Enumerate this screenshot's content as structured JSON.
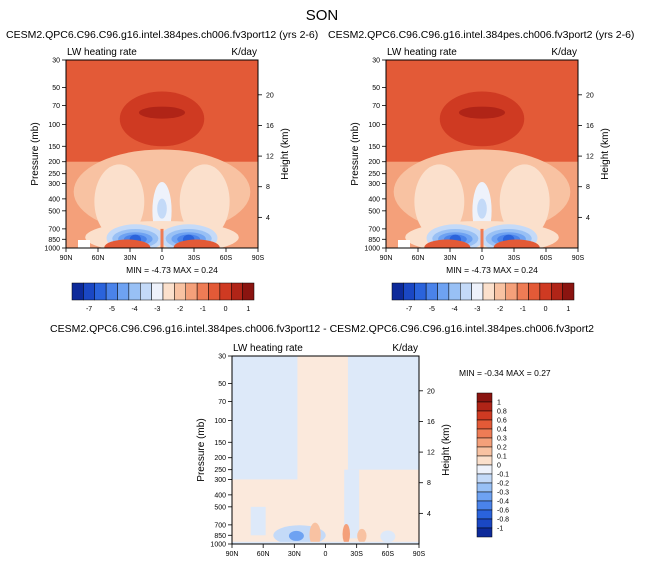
{
  "figure_title": "SON",
  "panels": [
    {
      "title": "CESM2.QPC6.C96.C96.g16.intel.384pes.ch006.fv3port12 (yrs 2-6)",
      "left_label": "LW heating rate",
      "right_label": "K/day",
      "ylabel": "Pressure (mb)",
      "ylabel_right": "Height (km)",
      "stats": "MIN =  -4.73  MAX =  0.24"
    },
    {
      "title": "CESM2.QPC6.C96.C96.g16.intel.384pes.ch006.fv3port2 (yrs 2-6)",
      "left_label": "LW heating rate",
      "right_label": "K/day",
      "ylabel": "Pressure (mb)",
      "ylabel_right": "Height (km)",
      "stats": "MIN =  -4.73  MAX =  0.24"
    },
    {
      "title": "CESM2.QPC6.C96.C96.g16.intel.384pes.ch006.fv3port12 - CESM2.QPC6.C96.C96.g16.intel.384pes.ch006.fv3port2",
      "left_label": "LW heating rate",
      "right_label": "K/day",
      "ylabel": "Pressure (mb)",
      "ylabel_right": "Height (km)",
      "stats": "MIN =  -0.34  MAX =   0.27"
    }
  ],
  "chart_data": [
    {
      "type": "heatmap",
      "title": "CESM2.QPC6.C96.C96.g16.intel.384pes.ch006.fv3port12 (yrs 2-6)",
      "x_ticks": [
        "90N",
        "60N",
        "30N",
        "0",
        "30S",
        "60S",
        "90S"
      ],
      "x_values": [
        90,
        60,
        30,
        0,
        -30,
        -60,
        -90
      ],
      "y_ticks_pressure": [
        "30",
        "50",
        "70",
        "100",
        "150",
        "200",
        "250",
        "300",
        "400",
        "500",
        "700",
        "850",
        "1000"
      ],
      "y_ticks_height": [
        "20",
        "16",
        "12",
        "8",
        "4"
      ],
      "ylim_mb": [
        1000,
        30
      ],
      "variable": "LW heating rate",
      "units": "K/day",
      "min": -4.73,
      "max": 0.24
    },
    {
      "type": "heatmap",
      "title": "CESM2.QPC6.C96.C96.g16.intel.384pes.ch006.fv3port2 (yrs 2-6)",
      "x_ticks": [
        "90N",
        "60N",
        "30N",
        "0",
        "30S",
        "60S",
        "90S"
      ],
      "x_values": [
        90,
        60,
        30,
        0,
        -30,
        -60,
        -90
      ],
      "y_ticks_pressure": [
        "30",
        "50",
        "70",
        "100",
        "150",
        "200",
        "250",
        "300",
        "400",
        "500",
        "700",
        "850",
        "1000"
      ],
      "y_ticks_height": [
        "20",
        "16",
        "12",
        "8",
        "4"
      ],
      "ylim_mb": [
        1000,
        30
      ],
      "variable": "LW heating rate",
      "units": "K/day",
      "min": -4.73,
      "max": 0.24
    },
    {
      "type": "heatmap",
      "title": "CESM2.QPC6.C96.C96.g16.intel.384pes.ch006.fv3port12 - CESM2.QPC6.C96.C96.g16.intel.384pes.ch006.fv3port2",
      "x_ticks": [
        "90N",
        "60N",
        "30N",
        "0",
        "30S",
        "60S",
        "90S"
      ],
      "x_values": [
        90,
        60,
        30,
        0,
        -30,
        -60,
        -90
      ],
      "y_ticks_pressure": [
        "30",
        "50",
        "70",
        "100",
        "150",
        "200",
        "250",
        "300",
        "400",
        "500",
        "700",
        "850",
        "1000"
      ],
      "y_ticks_height": [
        "20",
        "16",
        "12",
        "8",
        "4"
      ],
      "ylim_mb": [
        1000,
        30
      ],
      "variable": "LW heating rate",
      "units": "K/day",
      "min": -0.34,
      "max": 0.27
    }
  ],
  "colorbar_main": {
    "labels": [
      "-7",
      "-5",
      "-4",
      "-3",
      "-2",
      "-1",
      "0",
      "1"
    ],
    "colors": [
      "#0d2a9a",
      "#1a47c4",
      "#2a63dc",
      "#4a83ea",
      "#6ea2f2",
      "#98c0f5",
      "#c4daf8",
      "#eef2fb",
      "#fbe0cc",
      "#f8c2a2",
      "#f4a07a",
      "#ee7c55",
      "#e35a37",
      "#cf3a22",
      "#b02417",
      "#8a1410"
    ]
  },
  "colorbar_diff": {
    "labels": [
      "1",
      "0.8",
      "0.6",
      "0.4",
      "0.3",
      "0.2",
      "0.1",
      "0",
      "-0.1",
      "-0.2",
      "-0.3",
      "-0.4",
      "-0.6",
      "-0.8",
      "-1"
    ],
    "colors": [
      "#8a1410",
      "#b02417",
      "#cf3a22",
      "#e35a37",
      "#ee7c55",
      "#f4a07a",
      "#f8c2a2",
      "#fbe0cc",
      "#eef2fb",
      "#c4daf8",
      "#98c0f5",
      "#6ea2f2",
      "#4a83ea",
      "#2a63dc",
      "#1a47c4",
      "#0d2a9a"
    ]
  }
}
